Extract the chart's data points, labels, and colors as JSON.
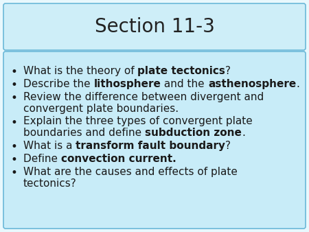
{
  "title": "Section 11-3",
  "title_bg_top": "#ceeef8",
  "title_bg_bot": "#a8dff5",
  "body_bg_color": "#c8ecf8",
  "border_color": "#6ab8d8",
  "slide_bg_color": "#e8f8fd",
  "title_fontsize": 20,
  "body_fontsize": 11,
  "bullet_items": [
    [
      {
        "text": "What is the theory of ",
        "bold": false
      },
      {
        "text": "plate tectonics",
        "bold": true
      },
      {
        "text": "?",
        "bold": false
      }
    ],
    [
      {
        "text": "Describe the ",
        "bold": false
      },
      {
        "text": "lithosphere",
        "bold": true
      },
      {
        "text": " and the ",
        "bold": false
      },
      {
        "text": "asthenosphere",
        "bold": true
      },
      {
        "text": ".",
        "bold": false
      }
    ],
    [
      {
        "text": "Review the difference between divergent and",
        "bold": false,
        "newline_after": true
      },
      {
        "text": "convergent plate boundaries.",
        "bold": false,
        "indent": true
      }
    ],
    [
      {
        "text": "Explain the three types of convergent plate",
        "bold": false,
        "newline_after": true
      },
      {
        "text": "boundaries and define ",
        "bold": false,
        "indent": true
      },
      {
        "text": "subduction zone",
        "bold": true
      },
      {
        "text": ".",
        "bold": false
      }
    ],
    [
      {
        "text": "What is a ",
        "bold": false
      },
      {
        "text": "transform fault boundary",
        "bold": true
      },
      {
        "text": "?",
        "bold": false
      }
    ],
    [
      {
        "text": "Define ",
        "bold": false
      },
      {
        "text": "convection current.",
        "bold": true
      }
    ],
    [
      {
        "text": "What are the causes and effects of plate",
        "bold": false,
        "newline_after": true
      },
      {
        "text": "tectonics?",
        "bold": false,
        "indent": true
      }
    ]
  ]
}
